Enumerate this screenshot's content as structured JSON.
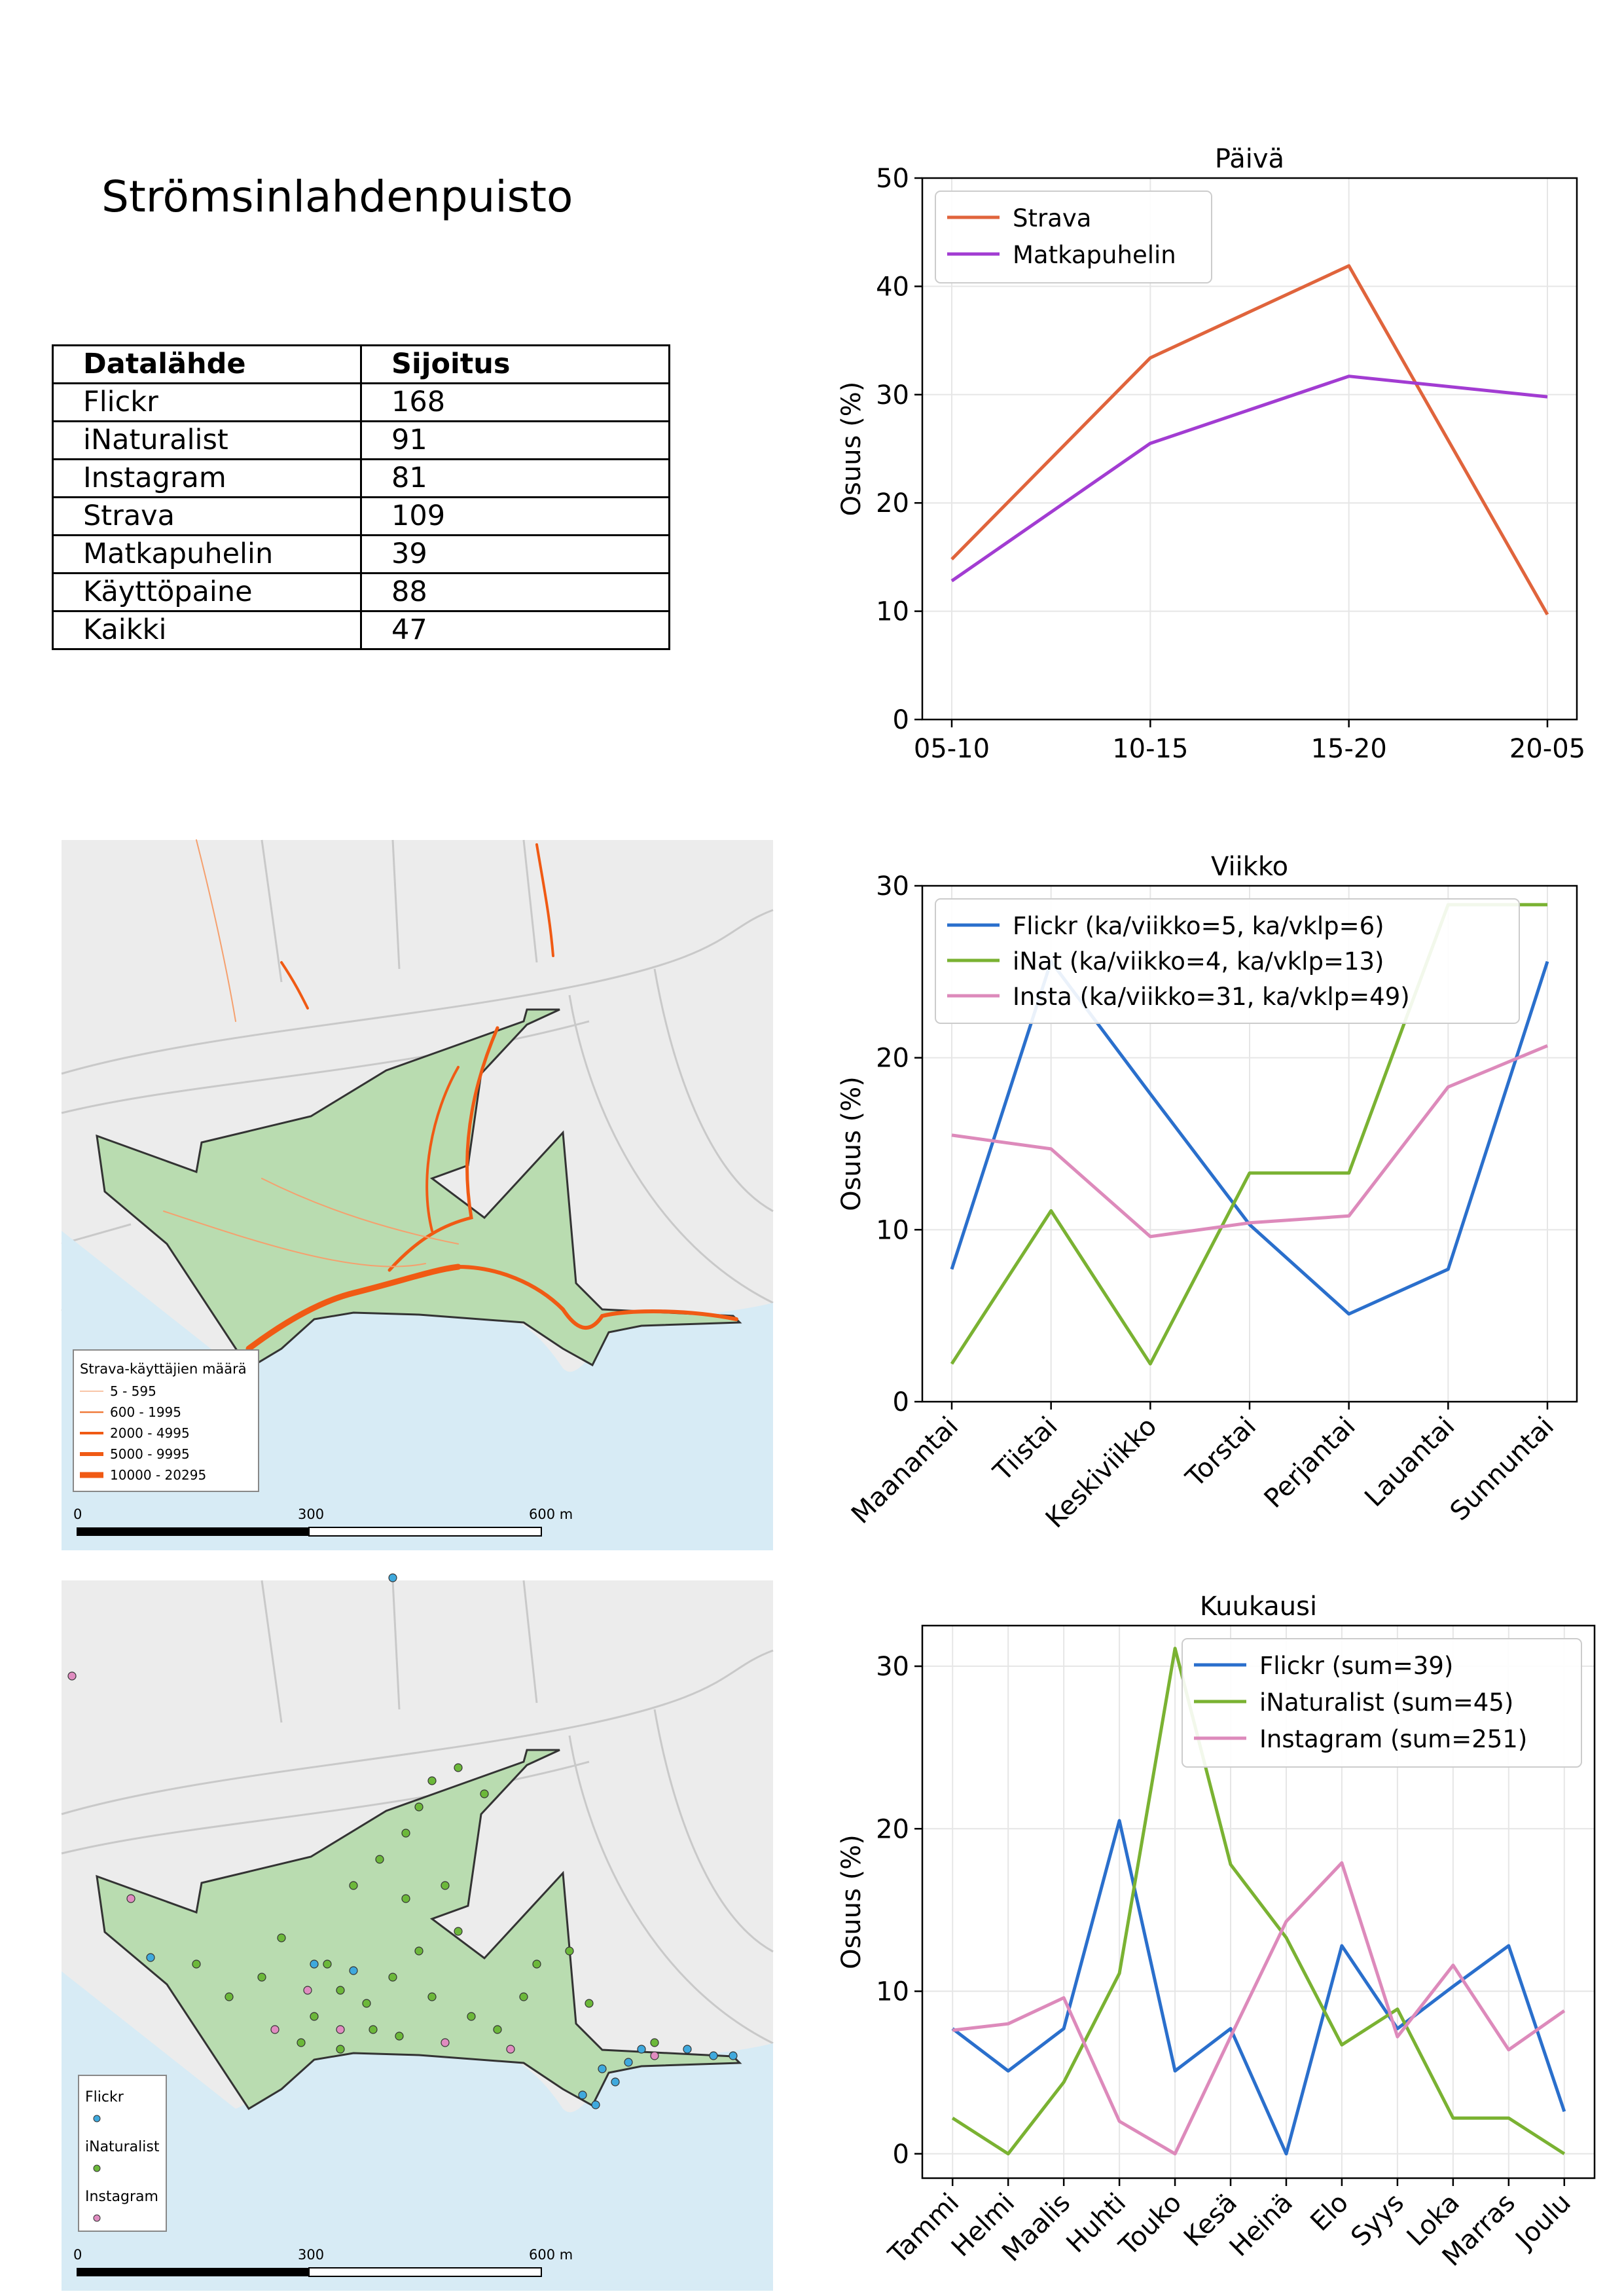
{
  "page_title": "Strömsinlahdenpuisto",
  "ranking_table": {
    "headers": [
      "Datalähde",
      "Sijoitus"
    ],
    "rows": [
      [
        "Flickr",
        "168"
      ],
      [
        "iNaturalist",
        "91"
      ],
      [
        "Instagram",
        "81"
      ],
      [
        "Strava",
        "109"
      ],
      [
        "Matkapuhelin",
        "39"
      ],
      [
        "Käyttöpaine",
        "88"
      ],
      [
        "Kaikki",
        "47"
      ]
    ]
  },
  "map_strava": {
    "legend_title": "Strava-käyttäjien määrä",
    "legend_items": [
      "5 - 595",
      "600 - 1995",
      "2000 - 4995",
      "5000 - 9995",
      "10000 - 20295"
    ],
    "scale_labels": [
      "0",
      "300",
      "600 m"
    ],
    "colors": {
      "park": "#b9dcb0",
      "water": "#d7ebf5",
      "route": "#f05a14"
    }
  },
  "map_points": {
    "legend_items": [
      "Flickr",
      "iNaturalist",
      "Instagram"
    ],
    "legend_colors": [
      "#3fa9dd",
      "#6cb83a",
      "#e08cc0"
    ],
    "scale_labels": [
      "0",
      "300",
      "600 m"
    ]
  },
  "chart_data": [
    {
      "type": "line",
      "title": "Päivä",
      "ylabel": "Osuus (%)",
      "xlabel": "",
      "categories": [
        "05-10",
        "10-15",
        "15-20",
        "20-05"
      ],
      "ylim": [
        0,
        50
      ],
      "yticks": [
        0,
        10,
        20,
        30,
        40,
        50
      ],
      "grid": true,
      "legend": "top-left",
      "series": [
        {
          "name": "Strava",
          "color": "#e0643c",
          "values": [
            14.8,
            33.4,
            41.9,
            9.7
          ]
        },
        {
          "name": "Matkapuhelin",
          "color": "#a23cd2",
          "values": [
            12.8,
            25.5,
            31.7,
            29.8
          ]
        }
      ]
    },
    {
      "type": "line",
      "title": "Viikko",
      "ylabel": "Osuus (%)",
      "xlabel": "",
      "categories": [
        "Maanantai",
        "Tiistai",
        "Keskiviikko",
        "Torstai",
        "Perjantai",
        "Lauantai",
        "Sunnuntai"
      ],
      "ylim": [
        0,
        30
      ],
      "yticks": [
        0,
        10,
        20,
        30
      ],
      "grid": true,
      "legend": "top-left",
      "series": [
        {
          "name": "Flickr (ka/viikko=5, ka/vklp=6)",
          "color": "#2a6fcc",
          "values": [
            7.7,
            25.6,
            17.9,
            10.3,
            5.1,
            7.7,
            25.6
          ]
        },
        {
          "name": "iNat (ka/viikko=4, ka/vklp=13)",
          "color": "#7ab232",
          "values": [
            2.2,
            11.1,
            2.2,
            13.3,
            13.3,
            28.9,
            28.9
          ]
        },
        {
          "name": "Insta (ka/viikko=31, ka/vklp=49)",
          "color": "#dd8abb",
          "values": [
            15.5,
            14.7,
            9.6,
            10.4,
            10.8,
            18.3,
            20.7
          ]
        }
      ]
    },
    {
      "type": "line",
      "title": "Kuukausi",
      "ylabel": "Osuus (%)",
      "xlabel": "",
      "categories": [
        "Tammi",
        "Helmi",
        "Maalis",
        "Huhti",
        "Touko",
        "Kesä",
        "Heinä",
        "Elo",
        "Syys",
        "Loka",
        "Marras",
        "Joulu"
      ],
      "ylim": [
        -1.5,
        32.5
      ],
      "yticks": [
        0,
        10,
        20,
        30
      ],
      "grid": true,
      "legend": "top-right",
      "series": [
        {
          "name": "Flickr (sum=39)",
          "color": "#2a6fcc",
          "values": [
            7.7,
            5.1,
            7.7,
            20.5,
            5.1,
            7.7,
            0.0,
            12.8,
            7.7,
            10.3,
            12.8,
            2.6
          ]
        },
        {
          "name": "iNaturalist (sum=45)",
          "color": "#7ab232",
          "values": [
            2.2,
            0.0,
            4.4,
            11.1,
            31.1,
            17.8,
            13.3,
            6.7,
            8.9,
            2.2,
            2.2,
            0.0
          ]
        },
        {
          "name": "Instagram (sum=251)",
          "color": "#dd8abb",
          "values": [
            7.6,
            8.0,
            9.6,
            2.0,
            0.0,
            7.2,
            14.3,
            17.9,
            7.2,
            11.6,
            6.4,
            8.8
          ]
        }
      ]
    }
  ]
}
